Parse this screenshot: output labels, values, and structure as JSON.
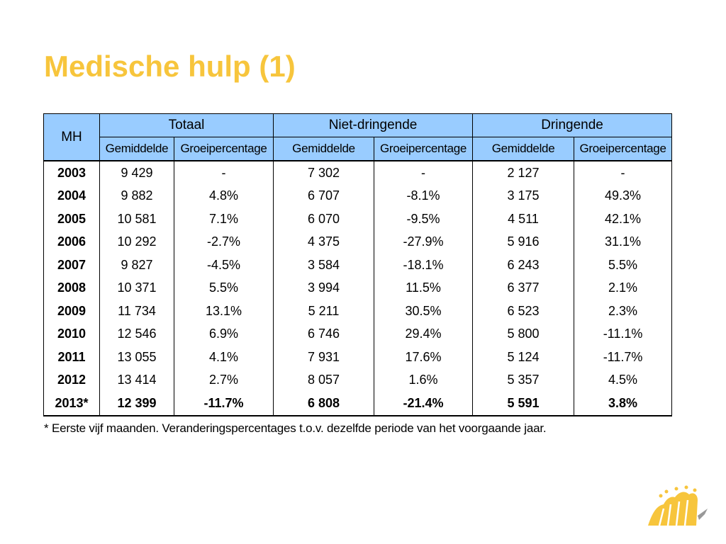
{
  "slide": {
    "title": "Medische hulp (1)",
    "footnote": "* Eerste vijf maanden. Veranderingspercentages t.o.v. dezelfde periode van het voorgaande jaar."
  },
  "table": {
    "corner": "MH",
    "groups": [
      "Totaal",
      "Niet-dringende",
      "Dringende"
    ],
    "subheaders": [
      "Gemiddelde",
      "Groeipercentage",
      "Gemiddelde",
      "Groeipercentage",
      "Gemiddelde",
      "Groeipercentage"
    ],
    "rows": [
      {
        "year": "2003",
        "cells": [
          "9 429",
          "-",
          "7 302",
          "-",
          "2 127",
          "-"
        ]
      },
      {
        "year": "2004",
        "cells": [
          "9 882",
          "4.8%",
          "6 707",
          "-8.1%",
          "3 175",
          "49.3%"
        ]
      },
      {
        "year": "2005",
        "cells": [
          "10 581",
          "7.1%",
          "6 070",
          "-9.5%",
          "4 511",
          "42.1%"
        ]
      },
      {
        "year": "2006",
        "cells": [
          "10 292",
          "-2.7%",
          "4 375",
          "-27.9%",
          "5 916",
          "31.1%"
        ]
      },
      {
        "year": "2007",
        "cells": [
          "9 827",
          "-4.5%",
          "3 584",
          "-18.1%",
          "6 243",
          "5.5%"
        ]
      },
      {
        "year": "2008",
        "cells": [
          "10 371",
          "5.5%",
          "3 994",
          "11.5%",
          "6 377",
          "2.1%"
        ]
      },
      {
        "year": "2009",
        "cells": [
          "11 734",
          "13.1%",
          "5 211",
          "30.5%",
          "6 523",
          "2.3%"
        ]
      },
      {
        "year": "2010",
        "cells": [
          "12 546",
          "6.9%",
          "6 746",
          "29.4%",
          "5 800",
          "-11.1%"
        ]
      },
      {
        "year": "2011",
        "cells": [
          "13 055",
          "4.1%",
          "7 931",
          "17.6%",
          "5 124",
          "-11.7%"
        ]
      },
      {
        "year": "2012",
        "cells": [
          "13 414",
          "2.7%",
          "8 057",
          "1.6%",
          "5 357",
          "4.5%"
        ]
      },
      {
        "year": "2013*",
        "cells": [
          "12 399",
          "-11.7%",
          "6 808",
          "-21.4%",
          "5 591",
          "3.8%"
        ]
      }
    ]
  },
  "colors": {
    "title": "#f7c53c",
    "header_fill": "#99ccff",
    "logo": "#f7c53c",
    "logo_accent": "#999999"
  },
  "logo": {
    "icon": "brussels-iris-logo-icon"
  }
}
